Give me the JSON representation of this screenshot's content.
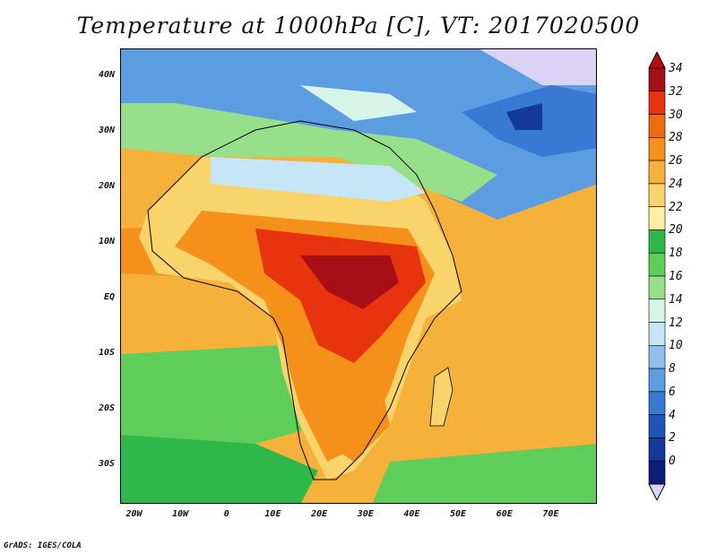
{
  "title": "Temperature at 1000hPa [C], VT: 2017020500",
  "footer": "GrADS: IGES/COLA",
  "map": {
    "variable": "Temperature at 1000hPa",
    "units": "C",
    "valid_time": "2017020500",
    "projection": "latlon",
    "lon_range": [
      -23,
      80
    ],
    "lat_range": [
      -37,
      45
    ],
    "lat_ticks": [
      {
        "value": 40,
        "label": "40N"
      },
      {
        "value": 30,
        "label": "30N"
      },
      {
        "value": 20,
        "label": "20N"
      },
      {
        "value": 10,
        "label": "10N"
      },
      {
        "value": 0,
        "label": "EQ"
      },
      {
        "value": -10,
        "label": "10S"
      },
      {
        "value": -20,
        "label": "20S"
      },
      {
        "value": -30,
        "label": "30S"
      }
    ],
    "lon_ticks": [
      {
        "value": -20,
        "label": "20W"
      },
      {
        "value": -10,
        "label": "10W"
      },
      {
        "value": 0,
        "label": "0"
      },
      {
        "value": 10,
        "label": "10E"
      },
      {
        "value": 20,
        "label": "20E"
      },
      {
        "value": 30,
        "label": "30E"
      },
      {
        "value": 40,
        "label": "40E"
      },
      {
        "value": 50,
        "label": "50E"
      },
      {
        "value": 60,
        "label": "60E"
      },
      {
        "value": 70,
        "label": "70E"
      }
    ]
  },
  "colorbar": {
    "levels": [
      "34",
      "32",
      "30",
      "28",
      "26",
      "24",
      "22",
      "20",
      "18",
      "16",
      "14",
      "12",
      "10",
      "8",
      "6",
      "4",
      "2",
      "0"
    ],
    "colors": [
      "#a50f15",
      "#e8340e",
      "#f06a10",
      "#f5901a",
      "#f6b13a",
      "#f8d46a",
      "#fdf0a2",
      "#2fb84a",
      "#5fcd5a",
      "#96e08c",
      "#d6f5e8",
      "#c6e6f7",
      "#8ec0ec",
      "#5c9ce0",
      "#3879d4",
      "#1f55bb",
      "#143a99",
      "#0b1e7a"
    ],
    "min_color": "#dcd2f5",
    "max_color": "#b80d10"
  }
}
